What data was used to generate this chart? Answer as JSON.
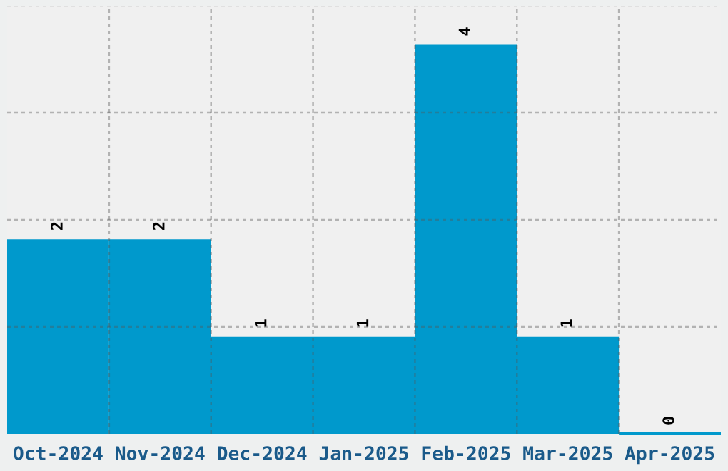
{
  "chart_data": {
    "type": "bar",
    "categories": [
      "Oct-2024",
      "Nov-2024",
      "Dec-2024",
      "Jan-2025",
      "Feb-2025",
      "Mar-2025",
      "Apr-2025"
    ],
    "values": [
      2,
      2,
      1,
      1,
      4,
      1,
      0
    ],
    "color": "#0099cc",
    "ylim": [
      0,
      4.4
    ],
    "yticks": [
      {
        "value": 1.1,
        "label": null
      },
      {
        "value": 2.2,
        "label": null
      },
      {
        "value": 3.3,
        "label": null
      },
      {
        "value": 4.4,
        "label": null
      }
    ],
    "tick_labels": "x",
    "grid": true,
    "data_labels": true
  }
}
